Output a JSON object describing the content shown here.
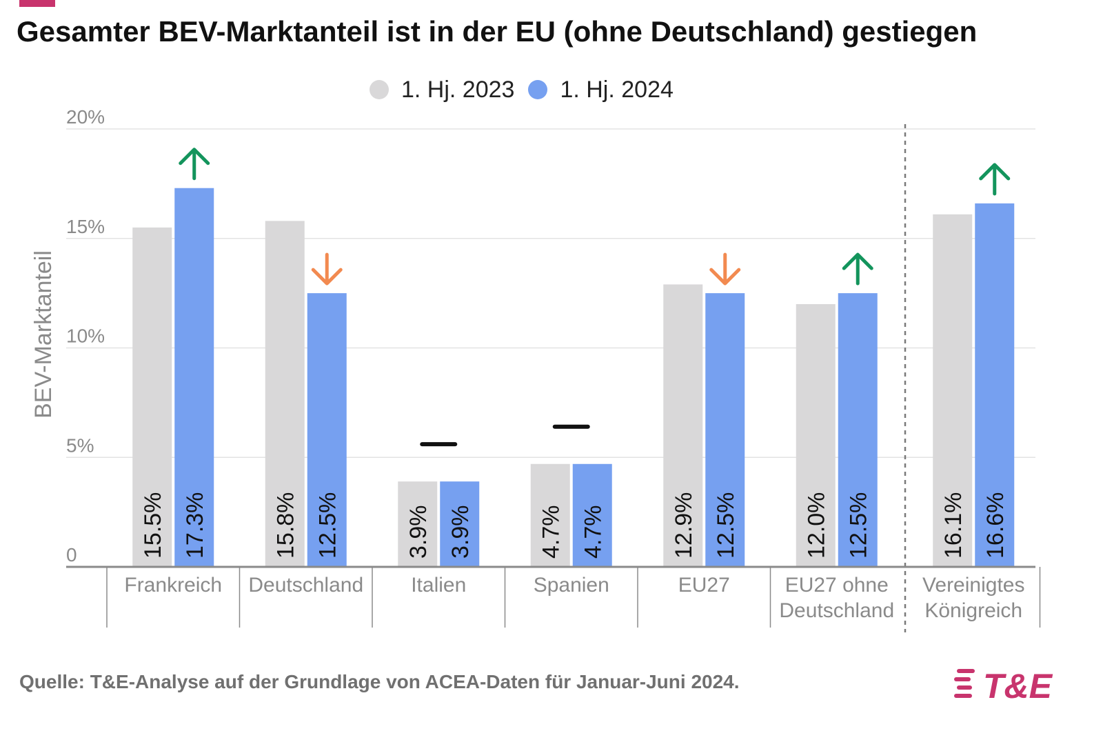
{
  "title": "Gesamter BEV-Marktanteil ist in der EU (ohne Deutschland) gestiegen",
  "source": "Quelle: T&E-Analyse auf der Grundlage von ACEA-Daten für Januar-Juni 2024.",
  "logo_text": "T&E",
  "colors": {
    "series_2023": "#d9d8d9",
    "series_2024": "#76a0f0",
    "arrow_up": "#13945c",
    "arrow_down": "#f28a50",
    "flat": "#111111",
    "brand": "#c8346d"
  },
  "chart_data": {
    "type": "bar",
    "title": "Gesamter BEV-Marktanteil ist in der EU (ohne Deutschland) gestiegen",
    "ylabel": "BEV-Marktanteil",
    "xlabel": "",
    "ylim": [
      0,
      20
    ],
    "yticks": [
      {
        "value": 0,
        "label": "0"
      },
      {
        "value": 5,
        "label": "5%"
      },
      {
        "value": 10,
        "label": "10%"
      },
      {
        "value": 15,
        "label": "15%"
      },
      {
        "value": 20,
        "label": "20%"
      }
    ],
    "grid": true,
    "legend_position": "top-center",
    "categories": [
      [
        "Frankreich"
      ],
      [
        "Deutschland"
      ],
      [
        "Italien"
      ],
      [
        "Spanien"
      ],
      [
        "EU27"
      ],
      [
        "EU27 ohne",
        "Deutschland"
      ],
      [
        "Vereinigtes",
        "Königreich"
      ]
    ],
    "series": [
      {
        "name": "1. Hj. 2023",
        "values": [
          15.5,
          15.8,
          3.9,
          4.7,
          12.9,
          12.0,
          16.1
        ],
        "labels": [
          "15.5%",
          "15.8%",
          "3.9%",
          "4.7%",
          "12.9%",
          "12.0%",
          "16.1%"
        ]
      },
      {
        "name": "1. Hj. 2024",
        "values": [
          17.3,
          12.5,
          3.9,
          4.7,
          12.5,
          12.5,
          16.6
        ],
        "labels": [
          "17.3%",
          "12.5%",
          "3.9%",
          "4.7%",
          "12.5%",
          "12.5%",
          "16.6%"
        ]
      }
    ],
    "change_markers": [
      "up",
      "down",
      "flat",
      "flat",
      "down",
      "up",
      "up"
    ],
    "separator_after_category": 5
  }
}
